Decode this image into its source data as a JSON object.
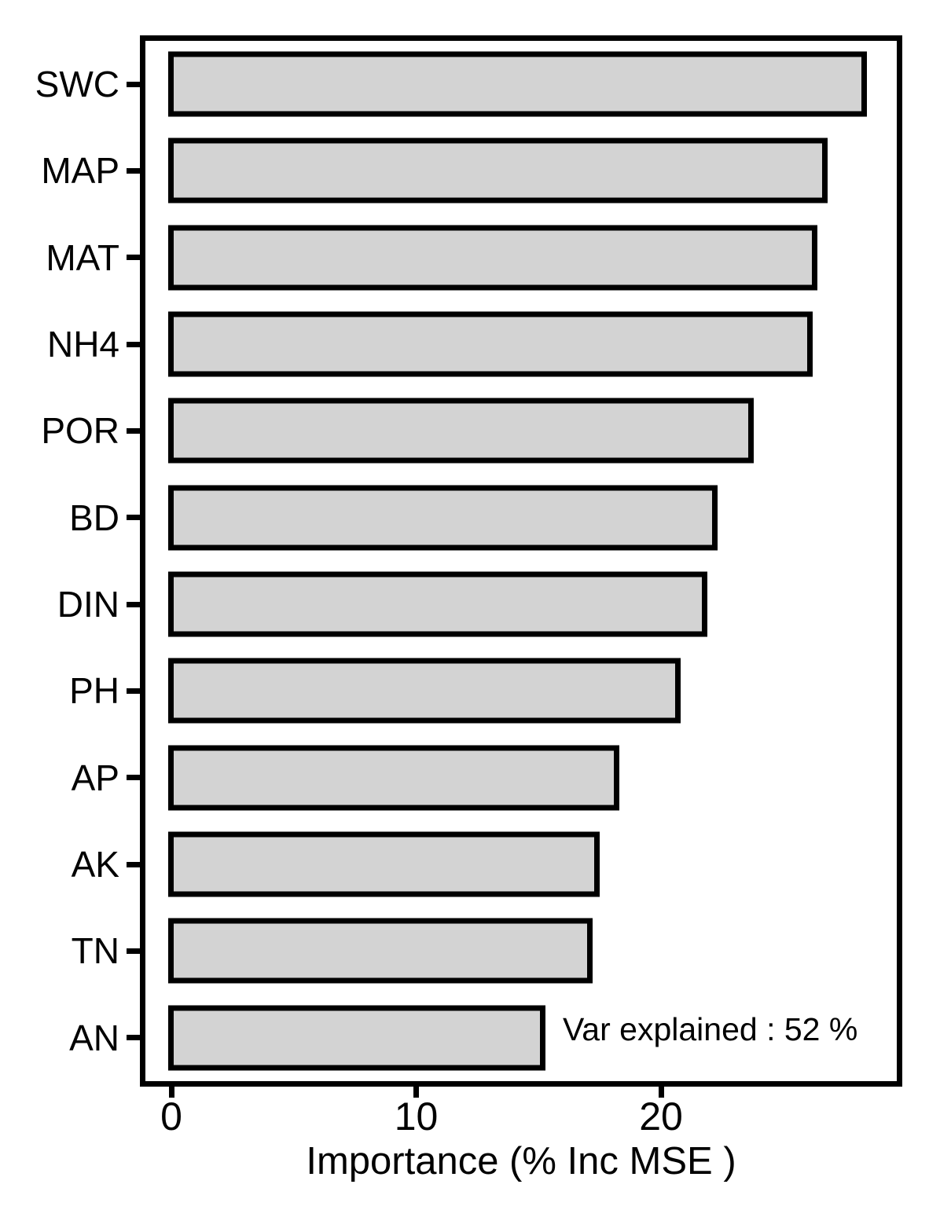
{
  "chart_data": {
    "type": "bar",
    "orientation": "horizontal",
    "title": "",
    "categories": [
      "SWC",
      "MAP",
      "MAT",
      "NH4",
      "POR",
      "BD",
      "DIN",
      "PH",
      "AP",
      "AK",
      "TN",
      "AN"
    ],
    "values": [
      28.3,
      26.7,
      26.3,
      26.1,
      23.7,
      22.2,
      21.8,
      20.7,
      18.2,
      17.4,
      17.1,
      15.2
    ],
    "xlabel": "Importance (% Inc MSE )",
    "ylabel": "",
    "x_ticks": [
      0,
      10,
      20
    ],
    "xlim": [
      -1.1,
      29.6
    ],
    "annotation": "Var explained : 52 %",
    "grid": "off",
    "legend": "none",
    "bar_fill": "#d3d3d3",
    "bar_stroke": "#000000",
    "background": "#ffffff"
  }
}
